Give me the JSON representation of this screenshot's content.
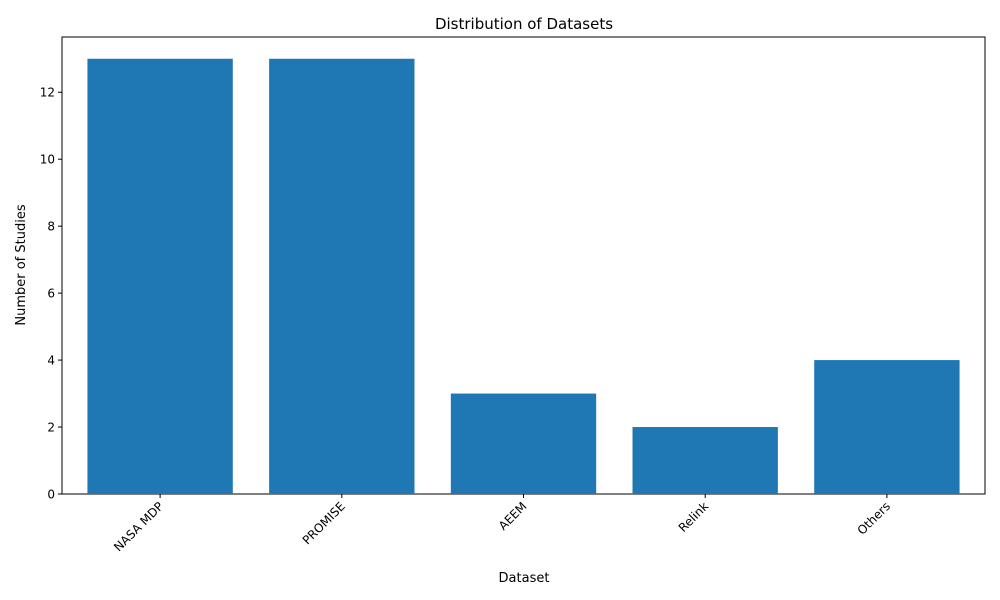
{
  "chart_data": {
    "type": "bar",
    "title": "Distribution of Datasets",
    "xlabel": "Dataset",
    "ylabel": "Number of Studies",
    "categories": [
      "NASA MDP",
      "PROMISE",
      "AEEM",
      "Relink",
      "Others"
    ],
    "values": [
      13,
      13,
      3,
      2,
      4
    ],
    "ylim": [
      0,
      13.65
    ],
    "yticks": [
      0,
      2,
      4,
      6,
      8,
      10,
      12
    ],
    "xtick_rotation_deg": 45,
    "grid": false,
    "legend": "none",
    "bar_color": "#1f77b4"
  }
}
